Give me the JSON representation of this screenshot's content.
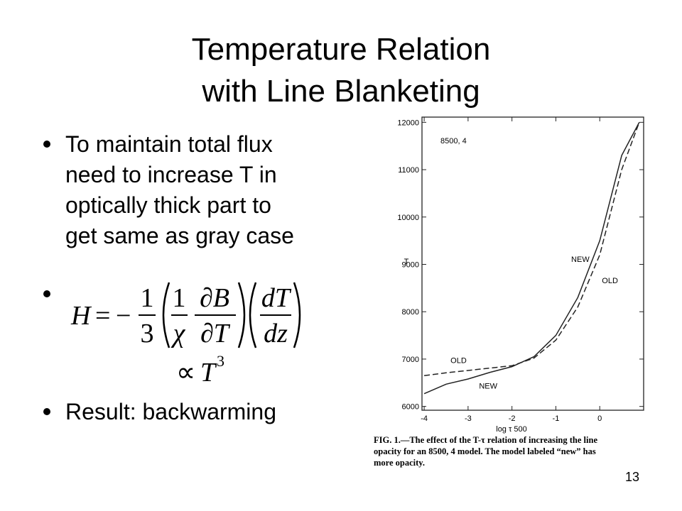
{
  "slide": {
    "title_lines": [
      "Temperature Relation",
      "with Line Blanketing"
    ],
    "bullet_1_lines": [
      "To maintain total flux",
      "need to increase T in",
      "optically thick part to",
      "get same as gray case"
    ],
    "equation": {
      "lhs": "H",
      "equals": "=",
      "minus": "−",
      "frac1_num": "1",
      "frac1_den": "3",
      "frac2_num": "1",
      "frac2_den": "χ",
      "frac3_num": "∂B",
      "frac3_den": "∂T",
      "frac4_num": "dT",
      "frac4_den": "dz"
    },
    "proportional": {
      "symbol": "∝",
      "base": "T",
      "exponent": "3"
    },
    "bullet_3": "Result: backwarming",
    "page_number": "13"
  },
  "chart_data": {
    "type": "line",
    "annotation_model": "8500, 4",
    "x_label": "log τ 500",
    "y_label": "T",
    "xlim": [
      -4.05,
      1
    ],
    "ylim": [
      5920,
      12110
    ],
    "xticks": [
      -4,
      -3,
      -2,
      -1,
      0
    ],
    "yticks": [
      6000,
      7000,
      8000,
      9000,
      10000,
      11000,
      12000
    ],
    "x": [
      -4,
      -3.5,
      -3,
      -2.5,
      -2,
      -1.5,
      -1,
      -0.5,
      0,
      0.5,
      0.9
    ],
    "series": [
      {
        "name": "NEW",
        "color": "#222222",
        "style": "solid",
        "values": [
          6270,
          6470,
          6580,
          6720,
          6840,
          7050,
          7500,
          8300,
          9500,
          11300,
          12000
        ]
      },
      {
        "name": "OLD",
        "color": "#222222",
        "style": "dashed",
        "values": [
          6650,
          6710,
          6760,
          6810,
          6860,
          7020,
          7400,
          8100,
          9200,
          11000,
          12000
        ]
      }
    ],
    "annotations": [
      {
        "text": "NEW",
        "x": -0.65,
        "y": 9050
      },
      {
        "text": "OLD",
        "x": 0.05,
        "y": 8600
      },
      {
        "text": "OLD",
        "x": -3.4,
        "y": 6920
      },
      {
        "text": "NEW",
        "x": -2.75,
        "y": 6380
      }
    ],
    "caption_lines": [
      "FIG. 1.—The effect of the T-τ relation of increasing the line",
      "opacity for an 8500, 4 model. The model labeled “new” has",
      "more opacity."
    ]
  }
}
